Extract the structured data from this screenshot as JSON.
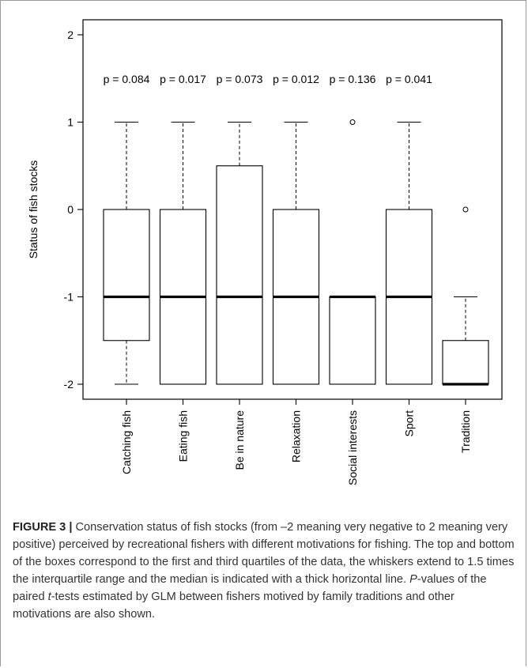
{
  "chart_data": {
    "type": "box",
    "ylabel": "Status of fish stocks",
    "xlabel": "",
    "ylim": [
      -2,
      2
    ],
    "yticks": [
      "-2",
      "-1",
      "0",
      "1",
      "2"
    ],
    "grid": false,
    "categories": [
      "Catching fish",
      "Eating fish",
      "Be in nature",
      "Relaxation",
      "Social interests",
      "Sport",
      "Tradition"
    ],
    "boxes": [
      {
        "category": "Catching fish",
        "whisker_low": -2,
        "q1": -1.5,
        "median": -1,
        "q3": 0,
        "whisker_high": 1,
        "outliers": []
      },
      {
        "category": "Eating fish",
        "whisker_low": -2,
        "q1": -2,
        "median": -1,
        "q3": 0,
        "whisker_high": 1,
        "outliers": []
      },
      {
        "category": "Be in nature",
        "whisker_low": -2,
        "q1": -2,
        "median": -1,
        "q3": 0.5,
        "whisker_high": 1,
        "outliers": []
      },
      {
        "category": "Relaxation",
        "whisker_low": -2,
        "q1": -2,
        "median": -1,
        "q3": 0,
        "whisker_high": 1,
        "outliers": []
      },
      {
        "category": "Social interests",
        "whisker_low": -2,
        "q1": -2,
        "median": -1,
        "q3": -1,
        "whisker_high": -1,
        "outliers": [
          1
        ]
      },
      {
        "category": "Sport",
        "whisker_low": -2,
        "q1": -2,
        "median": -1,
        "q3": 0,
        "whisker_high": 1,
        "outliers": []
      },
      {
        "category": "Tradition",
        "whisker_low": -2,
        "q1": -2,
        "median": -2,
        "q3": -1.5,
        "whisker_high": -1,
        "outliers": [
          0
        ]
      }
    ],
    "annotations": [
      "p = 0.084",
      "p = 0.017",
      "p = 0.073",
      "p = 0.012",
      "p = 0.136",
      "p = 0.041"
    ]
  },
  "caption": {
    "label": "FIGURE 3 |",
    "text_part1": " Conservation status of fish stocks (from –2 meaning very negative to 2 meaning very positive) perceived by recreational fishers with different motivations for fishing. The top and bottom of the boxes correspond to the first and third quartiles of the data, the whiskers extend to 1.5 times the interquartile range and the median is indicated with a thick horizontal line. ",
    "p_italic": "P",
    "text_part2": "-values of the paired ",
    "t_italic": "t",
    "text_part3": "-tests estimated by GLM between fishers motived by family traditions and other motivations are also shown."
  }
}
